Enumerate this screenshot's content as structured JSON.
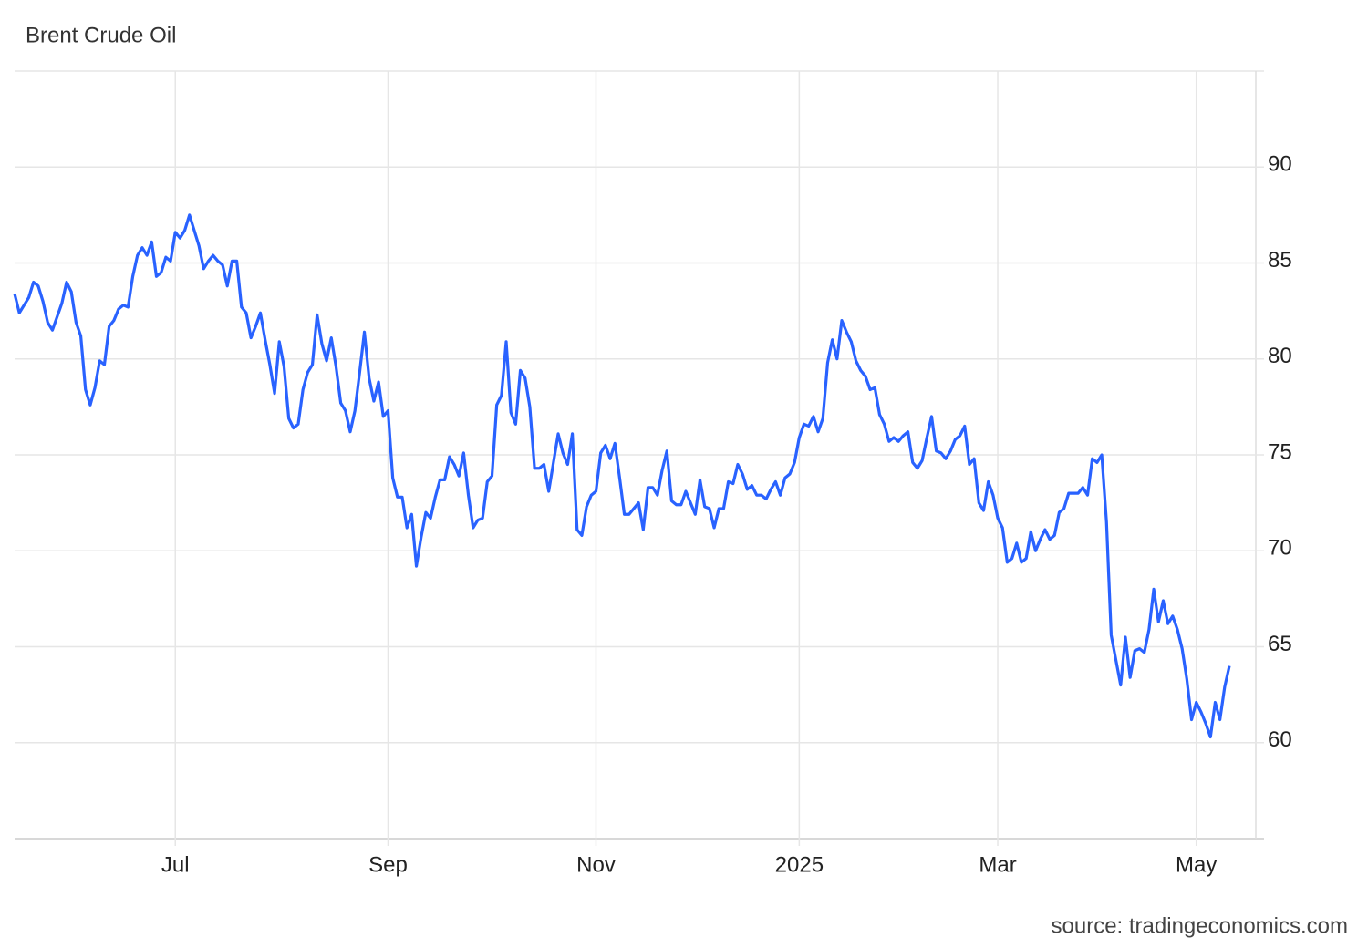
{
  "chart_data": {
    "type": "line",
    "title": "Brent Crude Oil",
    "source": "source: tradingeconomics.com",
    "categories": [
      null,
      null,
      null,
      null,
      null,
      null,
      null,
      null,
      null,
      null,
      null,
      null,
      null,
      null,
      null,
      null,
      null,
      null,
      null,
      null,
      null,
      null,
      null,
      null,
      null,
      null,
      null,
      null,
      null,
      null,
      null,
      null,
      null,
      null,
      "Jul",
      null,
      null,
      null,
      null,
      null,
      null,
      null,
      null,
      null,
      null,
      null,
      null,
      null,
      null,
      null,
      null,
      null,
      null,
      null,
      null,
      null,
      null,
      null,
      null,
      null,
      null,
      null,
      null,
      null,
      null,
      null,
      null,
      null,
      null,
      null,
      null,
      null,
      null,
      null,
      null,
      null,
      null,
      null,
      null,
      "Sep",
      null,
      null,
      null,
      null,
      null,
      null,
      null,
      null,
      null,
      null,
      null,
      null,
      null,
      null,
      null,
      null,
      null,
      null,
      null,
      null,
      null,
      null,
      null,
      null,
      null,
      null,
      null,
      null,
      null,
      null,
      null,
      null,
      null,
      null,
      null,
      null,
      null,
      null,
      null,
      null,
      null,
      null,
      null,
      "Nov",
      null,
      null,
      null,
      null,
      null,
      null,
      null,
      null,
      null,
      null,
      null,
      null,
      null,
      null,
      null,
      null,
      null,
      null,
      null,
      null,
      null,
      null,
      null,
      null,
      null,
      null,
      null,
      null,
      null,
      null,
      null,
      null,
      null,
      null,
      null,
      null,
      null,
      null,
      null,
      null,
      null,
      null,
      "2025",
      null,
      null,
      null,
      null,
      null,
      null,
      null,
      null,
      null,
      null,
      null,
      null,
      null,
      null,
      null,
      null,
      null,
      null,
      null,
      null,
      null,
      null,
      null,
      null,
      null,
      null,
      null,
      null,
      null,
      null,
      null,
      null,
      null,
      null,
      null,
      null,
      null,
      null,
      null,
      null,
      null,
      "Mar",
      null,
      null,
      null,
      null,
      null,
      null,
      null,
      null,
      null,
      null,
      null,
      null,
      null,
      null,
      null,
      null,
      null,
      null,
      null,
      null,
      null,
      null,
      null,
      null,
      null,
      null,
      null,
      null,
      null,
      null,
      null,
      null,
      null,
      null,
      null,
      null,
      null,
      null,
      null,
      null,
      null,
      "May",
      null,
      null,
      null,
      null,
      null,
      null,
      null
    ],
    "series": [
      {
        "name": "Brent Crude Oil",
        "color": "#2962ff",
        "values": [
          83.4,
          82.4,
          82.8,
          83.2,
          84.0,
          83.8,
          83.0,
          81.9,
          81.5,
          82.2,
          82.9,
          84.0,
          83.5,
          81.9,
          81.2,
          78.4,
          77.6,
          78.5,
          79.9,
          79.7,
          81.7,
          82.0,
          82.6,
          82.8,
          82.7,
          84.3,
          85.4,
          85.8,
          85.4,
          86.1,
          84.3,
          84.5,
          85.3,
          85.1,
          86.6,
          86.3,
          86.7,
          87.5,
          86.7,
          85.9,
          84.7,
          85.1,
          85.4,
          85.1,
          84.9,
          83.8,
          85.1,
          85.1,
          82.7,
          82.4,
          81.1,
          81.7,
          82.4,
          81.0,
          79.7,
          78.2,
          80.9,
          79.6,
          76.9,
          76.4,
          76.6,
          78.4,
          79.3,
          79.7,
          82.3,
          80.8,
          79.9,
          81.1,
          79.6,
          77.7,
          77.3,
          76.2,
          77.3,
          79.3,
          81.4,
          79.0,
          77.8,
          78.8,
          77.0,
          77.3,
          73.8,
          72.8,
          72.8,
          71.2,
          71.9,
          69.2,
          70.7,
          72.0,
          71.7,
          72.8,
          73.7,
          73.7,
          74.9,
          74.5,
          73.9,
          75.1,
          72.9,
          71.2,
          71.6,
          71.7,
          73.6,
          73.9,
          77.6,
          78.1,
          80.9,
          77.2,
          76.6,
          79.4,
          79.0,
          77.5,
          74.3,
          74.3,
          74.5,
          73.1,
          74.6,
          76.1,
          75.1,
          74.5,
          76.1,
          71.1,
          70.8,
          72.3,
          72.9,
          73.1,
          75.1,
          75.5,
          74.8,
          75.6,
          73.8,
          71.9,
          71.9,
          72.2,
          72.5,
          71.1,
          73.3,
          73.3,
          72.9,
          74.2,
          75.2,
          72.6,
          72.4,
          72.4,
          73.1,
          72.5,
          71.9,
          73.7,
          72.3,
          72.2,
          71.2,
          72.2,
          72.2,
          73.6,
          73.5,
          74.5,
          74.0,
          73.2,
          73.4,
          72.9,
          72.9,
          72.7,
          73.2,
          73.6,
          72.9,
          73.8,
          74.0,
          74.6,
          75.9,
          76.6,
          76.5,
          77.0,
          76.2,
          76.9,
          79.8,
          81.0,
          80.0,
          82.0,
          81.4,
          80.9,
          79.9,
          79.4,
          79.1,
          78.4,
          78.5,
          77.1,
          76.6,
          75.7,
          75.9,
          75.7,
          76.0,
          76.2,
          74.6,
          74.3,
          74.7,
          75.9,
          77.0,
          75.2,
          75.1,
          74.8,
          75.2,
          75.8,
          76.0,
          76.5,
          74.5,
          74.8,
          72.5,
          72.1,
          73.6,
          72.9,
          71.7,
          71.2,
          69.4,
          69.6,
          70.4,
          69.4,
          69.6,
          71.0,
          70.0,
          70.6,
          71.1,
          70.6,
          70.8,
          72.0,
          72.2,
          73.0,
          73.0,
          73.0,
          73.3,
          72.9,
          74.8,
          74.6,
          75.0,
          71.5,
          65.6,
          64.3,
          63.0,
          65.5,
          63.4,
          64.8,
          64.9,
          64.7,
          65.9,
          68.0,
          66.3,
          67.4,
          66.2,
          66.6,
          65.9,
          64.9,
          63.3,
          61.2,
          62.1,
          61.6,
          61.0,
          60.3,
          62.1,
          61.2,
          62.9,
          64.0
        ]
      }
    ],
    "ylim": [
      55,
      95
    ],
    "yticks": [
      60,
      65,
      70,
      75,
      80,
      85,
      90
    ],
    "grid": true
  }
}
